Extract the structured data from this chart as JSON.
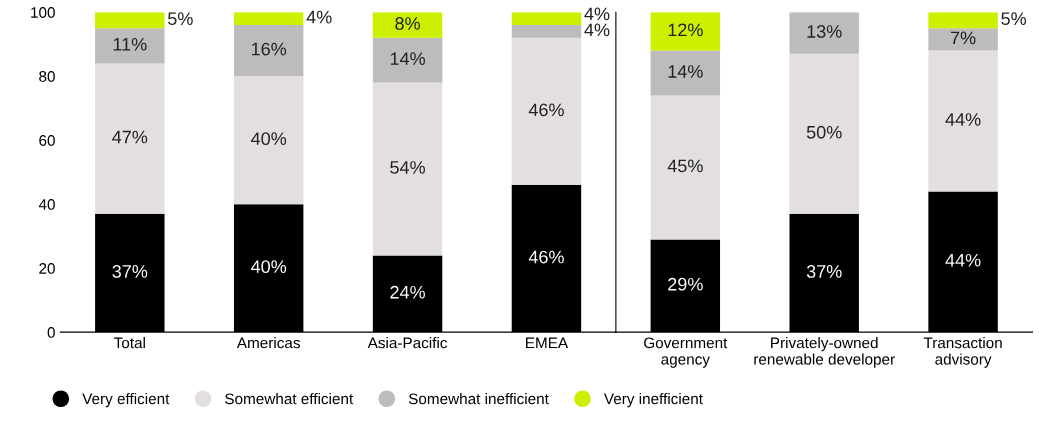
{
  "chart_data": [
    {
      "type": "bar",
      "stacked": true,
      "categories": [
        "Total",
        "Americas",
        "Asia-Pacific",
        "EMEA"
      ],
      "ylim": [
        0,
        100
      ],
      "yticks": [
        0,
        20,
        40,
        60,
        80,
        100
      ],
      "grid": false,
      "legend": "bottom",
      "marker": "circle",
      "tick_labels": true,
      "series": [
        {
          "name": "Very efficient",
          "color": "#000000",
          "values": [
            37,
            40,
            24,
            46
          ],
          "value_labels": [
            "37%",
            "40%",
            "24%",
            "46%"
          ]
        },
        {
          "name": "Somewhat efficient",
          "color": "#e3dfdf",
          "values": [
            47,
            40,
            54,
            46
          ],
          "value_labels": [
            "47%",
            "40%",
            "54%",
            "46%"
          ]
        },
        {
          "name": "Somewhat inefficient",
          "color": "#bdbbbb",
          "values": [
            11,
            16,
            14,
            4
          ],
          "value_labels": [
            "11%",
            "16%",
            "14%",
            "4%"
          ]
        },
        {
          "name": "Very inefficient",
          "color": "#ccf000",
          "values": [
            5,
            4,
            8,
            4
          ],
          "value_labels": [
            "5%",
            "4%",
            "8%",
            "4%"
          ]
        }
      ]
    },
    {
      "type": "bar",
      "stacked": true,
      "categories": [
        "Government\nagency",
        "Privately-owned\nrenewable developer",
        "Transaction\nadvisory"
      ],
      "ylim": [
        0,
        100
      ],
      "grid": false,
      "tick_labels": "x",
      "series": [
        {
          "color": "#000000",
          "values": [
            29,
            37,
            44
          ],
          "value_labels": [
            "29%",
            "37%",
            "44%"
          ]
        },
        {
          "color": "#e3dfdf",
          "values": [
            45,
            50,
            44
          ],
          "value_labels": [
            "45%",
            "50%",
            "44%"
          ]
        },
        {
          "color": "#bdbbbb",
          "values": [
            14,
            13,
            7
          ],
          "value_labels": [
            "14%",
            "13%",
            "7%"
          ]
        },
        {
          "color": "#ccf000",
          "values": [
            12,
            null,
            5
          ],
          "value_labels": [
            "12%",
            null,
            "5%"
          ]
        }
      ]
    }
  ]
}
